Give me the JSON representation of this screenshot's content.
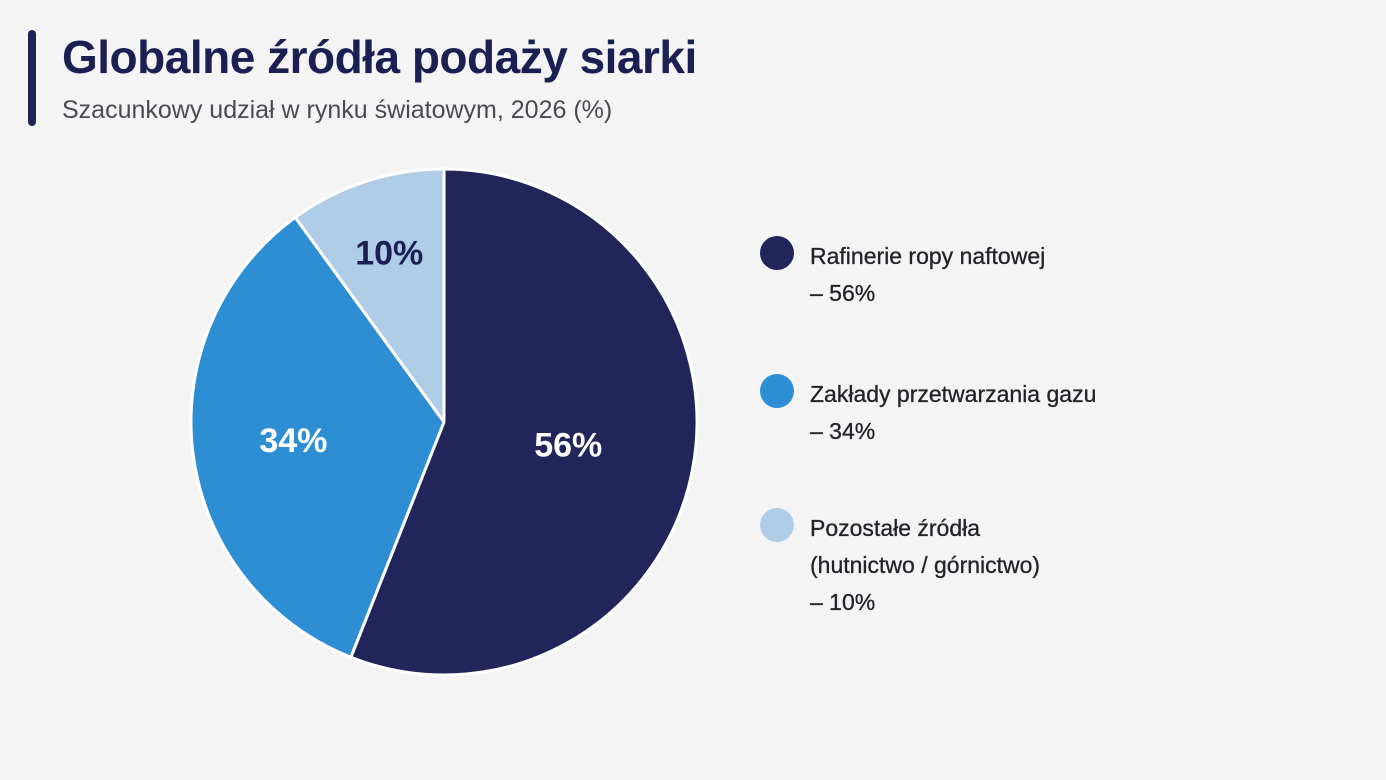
{
  "header": {
    "title": "Globalne źródła podaży siarki",
    "subtitle": "Szacunkowy udział w rynku światowym, 2026 (%)"
  },
  "colors": {
    "accent": "#1f2356",
    "slice_1": "#21255a",
    "slice_2": "#2e8ed3",
    "slice_3": "#b0cde8",
    "label_dark": "#1b1f52",
    "label_light": "#ffffff"
  },
  "legend": {
    "items": [
      {
        "label_lines": [
          "Rafinerie ropy naftowej"
        ],
        "value": "– 56%"
      },
      {
        "label_lines": [
          "Zakłady przetwarzania gazu"
        ],
        "value": "– 34%"
      },
      {
        "label_lines": [
          "Pozostałe źródła",
          "(hutnictwo / górnictwo)"
        ],
        "value": "– 10%"
      }
    ]
  },
  "chart_data": {
    "type": "pie",
    "title": "Globalne źródła podaży siarki",
    "subtitle": "Szacunkowy udział w rynku światowym, 2026 (%)",
    "unit": "%",
    "categories": [
      "Rafinerie ropy naftowej",
      "Zakłady przetwarzania gazu",
      "Pozostałe źródła (hutnictwo / górnictwo)"
    ],
    "values": [
      56,
      34,
      10
    ],
    "data_labels": [
      "56%",
      "34%",
      "10%"
    ],
    "start_angle": "12 o'clock",
    "direction": "clockwise",
    "legend_position": "right"
  }
}
